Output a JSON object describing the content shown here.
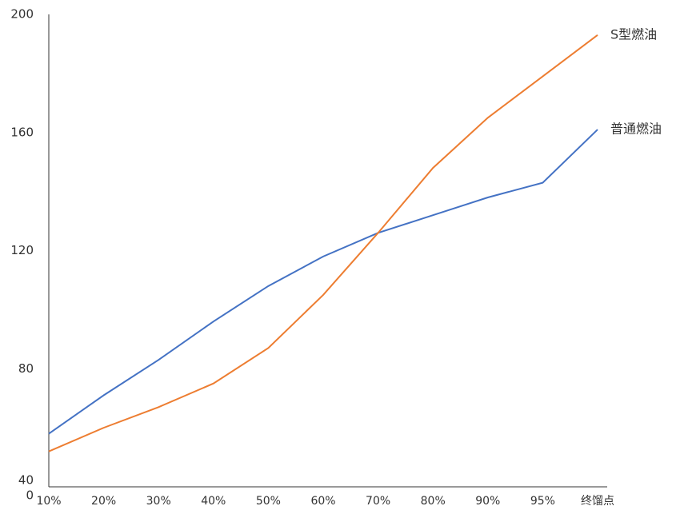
{
  "chart_data": {
    "type": "line",
    "categories": [
      "10%",
      "20%",
      "30%",
      "40%",
      "50%",
      "60%",
      "70%",
      "80%",
      "90%",
      "95%",
      "终馏点"
    ],
    "series": [
      {
        "name": "普通燃油",
        "color": "#4472c4",
        "values": [
          58,
          71,
          83,
          96,
          108,
          118,
          126,
          132,
          138,
          143,
          161
        ]
      },
      {
        "name": "S型燃油",
        "color": "#ed7d31",
        "values": [
          52,
          60,
          67,
          75,
          87,
          105,
          126,
          148,
          165,
          179,
          193
        ]
      }
    ],
    "ylim": [
      40,
      200
    ],
    "yticks": [
      40,
      80,
      120,
      160,
      200
    ],
    "origin_label": "0",
    "grid": false
  }
}
